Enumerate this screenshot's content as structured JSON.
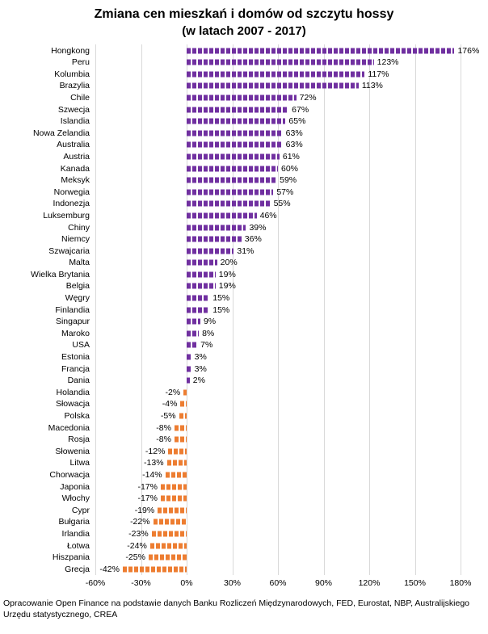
{
  "source_note": "Opracowanie Open Finance na podstawie danych Banku Rozliczeń Międzynarodowych, FED, Eurostat, NBP, Australijskiego Urzędu statystycznego, CREA",
  "chart_data": {
    "type": "bar",
    "orientation": "horizontal",
    "title": "Zmiana cen mieszkań i domów od szczytu hossy",
    "subtitle": "(w latach 2007 - 2017)",
    "categories": [
      "Hongkong",
      "Peru",
      "Kolumbia",
      "Brazylia",
      "Chile",
      "Szwecja",
      "Islandia",
      "Nowa Zelandia",
      "Australia",
      "Austria",
      "Kanada",
      "Meksyk",
      "Norwegia",
      "Indonezja",
      "Luksemburg",
      "Chiny",
      "Niemcy",
      "Szwajcaria",
      "Malta",
      "Wielka Brytania",
      "Belgia",
      "Węgry",
      "Finlandia",
      "Singapur",
      "Maroko",
      "USA",
      "Estonia",
      "Francja",
      "Dania",
      "Holandia",
      "Słowacja",
      "Polska",
      "Macedonia",
      "Rosja",
      "Słowenia",
      "Litwa",
      "Chorwacja",
      "Japonia",
      "Włochy",
      "Cypr",
      "Bułgaria",
      "Irlandia",
      "Łotwa",
      "Hiszpania",
      "Grecja"
    ],
    "values": [
      176,
      123,
      117,
      113,
      72,
      67,
      65,
      63,
      63,
      61,
      60,
      59,
      57,
      55,
      46,
      39,
      36,
      31,
      20,
      19,
      19,
      15,
      15,
      9,
      8,
      7,
      3,
      3,
      2,
      -2,
      -4,
      -5,
      -8,
      -8,
      -12,
      -13,
      -14,
      -17,
      -17,
      -19,
      -22,
      -23,
      -24,
      -25,
      -42
    ],
    "labels": [
      "176%",
      "123%",
      "117%",
      "113%",
      "72%",
      "67%",
      "65%",
      "63%",
      "63%",
      "61%",
      "60%",
      "59%",
      "57%",
      "55%",
      "46%",
      "39%",
      "36%",
      "31%",
      "20%",
      "19%",
      "19%",
      "15%",
      "15%",
      "9%",
      "8%",
      "7%",
      "3%",
      "3%",
      "2%",
      "-2%",
      "-4%",
      "-5%",
      "-8%",
      "-8%",
      "-12%",
      "-13%",
      "-14%",
      "-17%",
      "-17%",
      "-19%",
      "-22%",
      "-23%",
      "-24%",
      "-25%",
      "-42%"
    ],
    "xlim": [
      -60,
      180
    ],
    "xticks": [
      -60,
      -30,
      0,
      30,
      60,
      90,
      120,
      150,
      180
    ],
    "xtick_labels": [
      "-60%",
      "-30%",
      "0%",
      "30%",
      "60%",
      "90%",
      "120%",
      "150%",
      "180%"
    ],
    "positive_color": "#7030a0",
    "negative_color": "#ed7d31",
    "grid": true,
    "legend": "none"
  }
}
